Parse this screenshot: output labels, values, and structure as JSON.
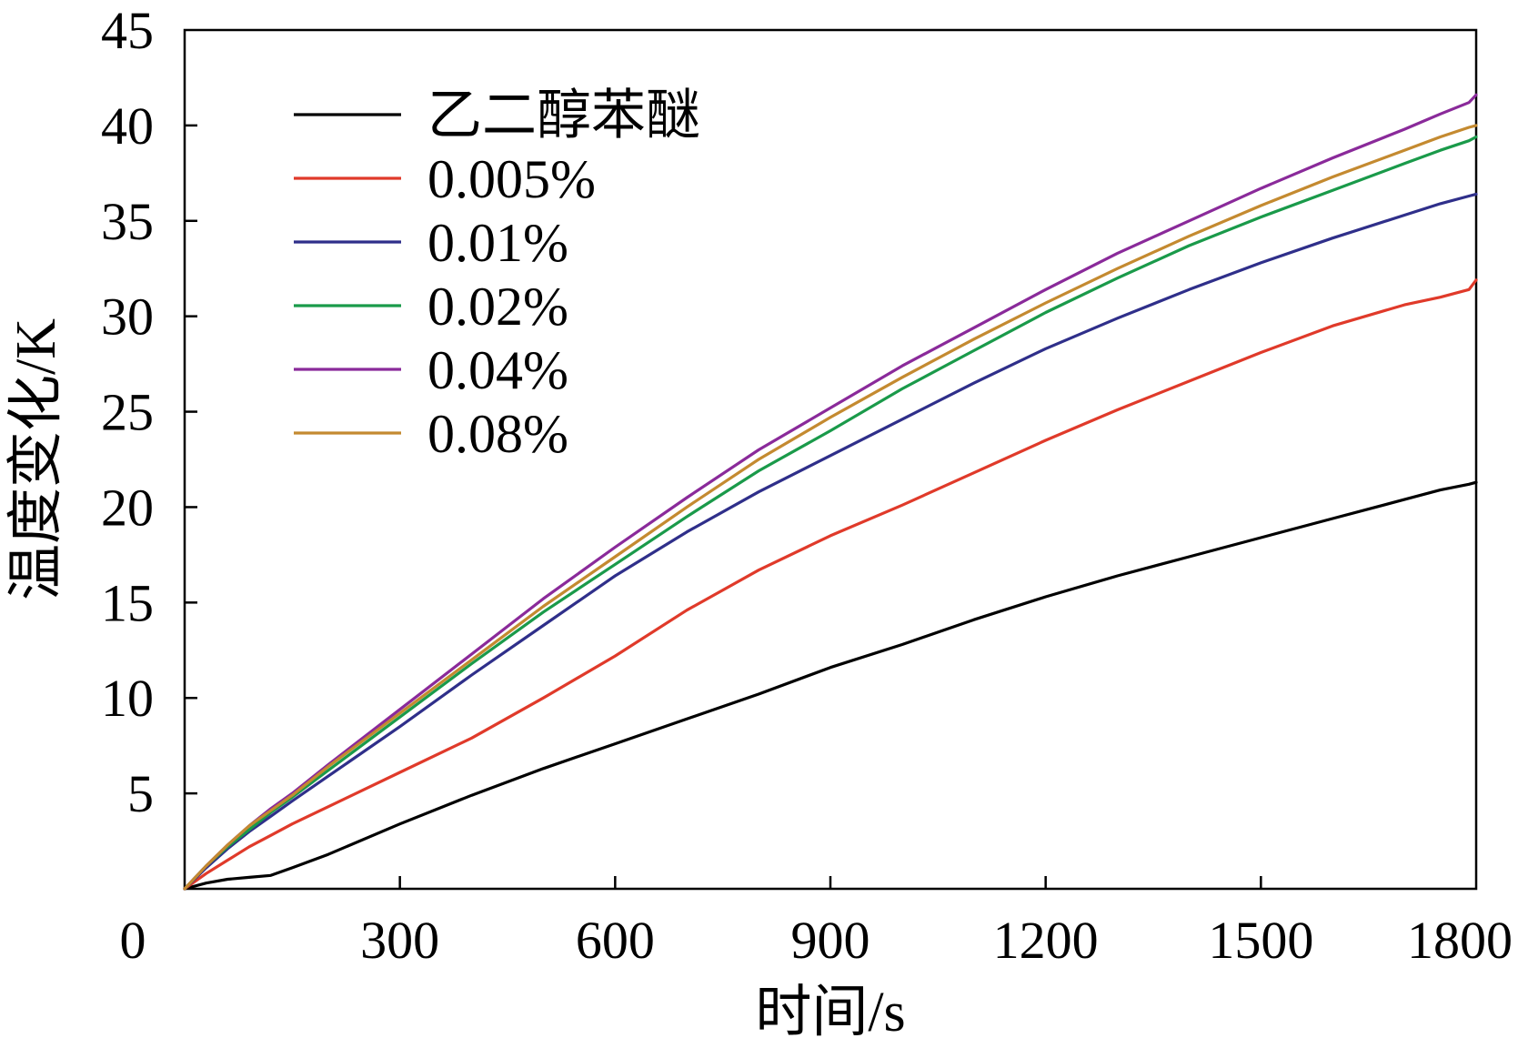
{
  "chart_data": {
    "type": "line",
    "title": "",
    "xlabel": "时间/s",
    "ylabel": "温度变化/K",
    "xlim": [
      0,
      1800
    ],
    "ylim": [
      0,
      45
    ],
    "grid": false,
    "legend_position": "top-left",
    "x_ticks": [
      0,
      300,
      600,
      900,
      1200,
      1500,
      1800
    ],
    "x_tick_labels": [
      "0",
      "300",
      "600",
      "900",
      "1200",
      "1500",
      "1800"
    ],
    "y_ticks": [
      5,
      10,
      15,
      20,
      25,
      30,
      35,
      40,
      45
    ],
    "y_tick_labels": [
      "5",
      "10",
      "15",
      "20",
      "25",
      "30",
      "35",
      "40",
      "45"
    ],
    "x": [
      0,
      30,
      60,
      90,
      120,
      150,
      200,
      300,
      400,
      500,
      600,
      700,
      800,
      900,
      1000,
      1100,
      1200,
      1300,
      1400,
      1500,
      1600,
      1700,
      1750,
      1790,
      1800
    ],
    "series": [
      {
        "name": "乙二醇苯醚",
        "color": "#000000",
        "values": [
          0,
          0.3,
          0.5,
          0.6,
          0.7,
          1.1,
          1.8,
          3.4,
          4.9,
          6.3,
          7.6,
          8.9,
          10.2,
          11.6,
          12.8,
          14.1,
          15.3,
          16.4,
          17.4,
          18.4,
          19.4,
          20.4,
          20.9,
          21.2,
          21.3
        ]
      },
      {
        "name": "0.005%",
        "color": "#e03a2a",
        "values": [
          0,
          0.8,
          1.5,
          2.2,
          2.8,
          3.4,
          4.3,
          6.1,
          7.9,
          10.0,
          12.2,
          14.6,
          16.7,
          18.5,
          20.1,
          21.8,
          23.5,
          25.1,
          26.6,
          28.1,
          29.5,
          30.6,
          31.0,
          31.4,
          31.9
        ]
      },
      {
        "name": "0.01%",
        "color": "#2f2f8a",
        "values": [
          0,
          1.1,
          2.1,
          3.0,
          3.8,
          4.6,
          5.9,
          8.5,
          11.2,
          13.8,
          16.4,
          18.7,
          20.8,
          22.7,
          24.6,
          26.5,
          28.3,
          29.9,
          31.4,
          32.8,
          34.1,
          35.3,
          35.9,
          36.3,
          36.4
        ]
      },
      {
        "name": "0.02%",
        "color": "#1a9a4a",
        "values": [
          0,
          1.2,
          2.2,
          3.1,
          4.0,
          4.8,
          6.2,
          9.0,
          11.8,
          14.5,
          17.0,
          19.5,
          21.9,
          24.0,
          26.2,
          28.2,
          30.2,
          32.0,
          33.7,
          35.2,
          36.6,
          38.0,
          38.7,
          39.2,
          39.4
        ]
      },
      {
        "name": "0.04%",
        "color": "#8a2a9a",
        "values": [
          0,
          1.2,
          2.3,
          3.3,
          4.2,
          5.0,
          6.5,
          9.4,
          12.3,
          15.2,
          17.9,
          20.5,
          23.0,
          25.2,
          27.4,
          29.4,
          31.4,
          33.3,
          35.0,
          36.7,
          38.3,
          39.8,
          40.6,
          41.2,
          41.6
        ]
      },
      {
        "name": "0.08%",
        "color": "#c48a30",
        "values": [
          0,
          1.2,
          2.3,
          3.3,
          4.1,
          4.9,
          6.4,
          9.2,
          12.0,
          14.8,
          17.4,
          20.0,
          22.5,
          24.7,
          26.8,
          28.8,
          30.7,
          32.5,
          34.2,
          35.8,
          37.3,
          38.7,
          39.4,
          39.9,
          40.0
        ]
      }
    ]
  }
}
